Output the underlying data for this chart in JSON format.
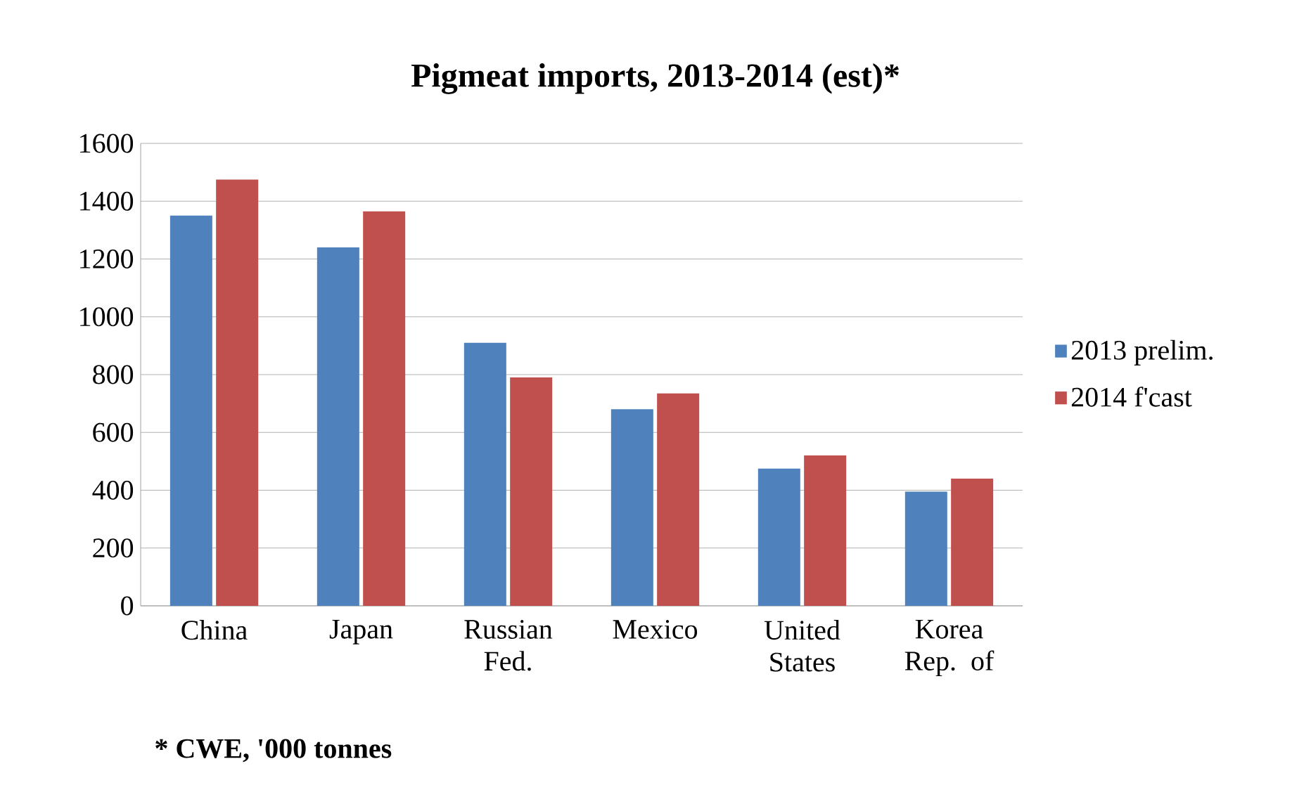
{
  "chart_data": {
    "type": "bar",
    "title": "Pigmeat imports, 2013-2014 (est)*",
    "categories": [
      "China",
      "Japan",
      "Russian Fed.",
      "Mexico",
      "United States",
      "Korea Rep. of"
    ],
    "series": [
      {
        "name": "2013 prelim.",
        "color": "#4f81bd",
        "values": [
          1350,
          1240,
          910,
          680,
          475,
          395
        ]
      },
      {
        "name": "2014 f'cast",
        "color": "#c0504d",
        "values": [
          1475,
          1365,
          790,
          735,
          520,
          440
        ]
      }
    ],
    "ylim": [
      0,
      1600
    ],
    "yticks": [
      0,
      200,
      400,
      600,
      800,
      1000,
      1200,
      1400,
      1600
    ],
    "grid": "y",
    "legend": "right",
    "annotations": [
      "* CWE, '000 tonnes"
    ]
  }
}
